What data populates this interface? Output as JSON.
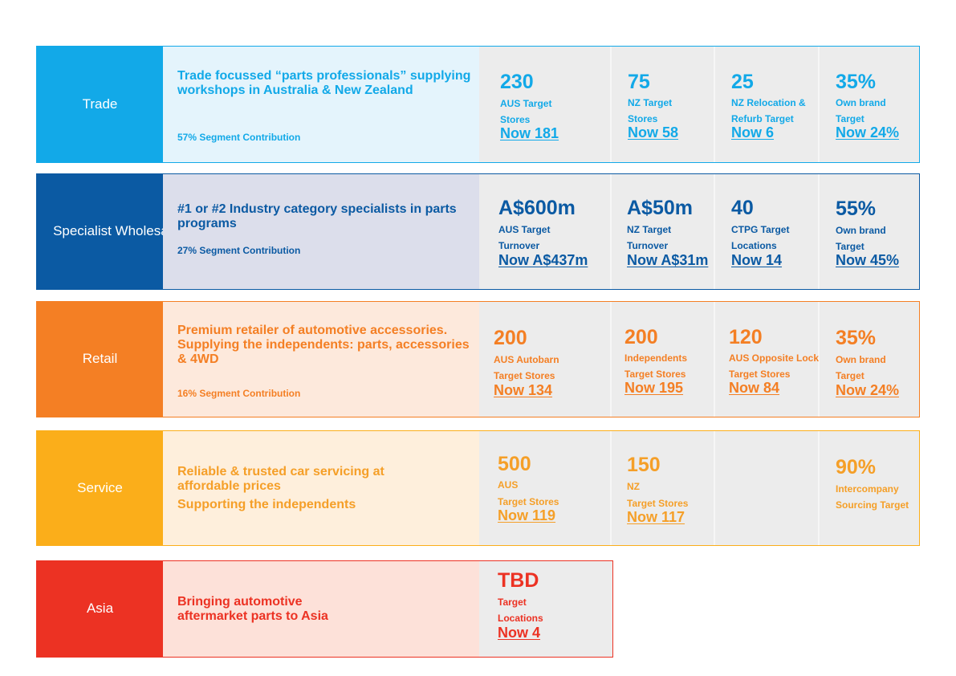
{
  "colors": {
    "trade": "#12a9e8",
    "trade_text": "#12a9e8",
    "trade_light": "#e4f4fc",
    "specialist": "#0b5aa3",
    "specialist_text": "#0b5aa3",
    "specialist_light": "#dcdeeb",
    "retail": "#f47f24",
    "retail_text": "#f47f24",
    "retail_light": "#fde9dc",
    "service": "#fbae1a",
    "service_text": "#f59f28",
    "service_light": "#feefdc",
    "asia": "#ec3223",
    "asia_text": "#ec3223",
    "asia_light": "#fde1d9",
    "metrics_bg": "#ececec"
  },
  "rows": [
    {
      "key": "trade",
      "label": "Trade",
      "description": "Trade focussed “parts professionals” supplying  workshops in Australia & New Zealand",
      "contribution": "57% Segment Contribution",
      "metrics": [
        {
          "value": "230",
          "line1": "AUS Target",
          "line2": "Stores",
          "now": "Now 181"
        },
        {
          "value": "75",
          "line1": "NZ Target",
          "line2": "Stores",
          "now": "Now 58"
        },
        {
          "value": "25",
          "line1": "NZ Relocation &",
          "line2": "Refurb Target",
          "now": "Now 6"
        },
        {
          "value": "35%",
          "line1": "Own brand",
          "line2": "Target",
          "now": "Now 24%"
        }
      ]
    },
    {
      "key": "specialist",
      "label": "Specialist Wholesale",
      "description": "#1 or #2 Industry category specialists in parts programs",
      "contribution": "27% Segment Contribution",
      "metrics": [
        {
          "value": "A$600m",
          "line1": "AUS Target",
          "line2": "Turnover",
          "now": "Now A$437m"
        },
        {
          "value": "A$50m",
          "line1": "NZ Target",
          "line2": "Turnover",
          "now": "Now A$31m"
        },
        {
          "value": "40",
          "line1": "CTPG Target",
          "line2": "Locations",
          "now": "Now 14"
        },
        {
          "value": "55%",
          "line1": "Own brand",
          "line2": "Target",
          "now": "Now 45%"
        }
      ]
    },
    {
      "key": "retail",
      "label": "Retail",
      "description": "Premium retailer of automotive accessories. Supplying the independents: parts, accessories & 4WD",
      "contribution": "16% Segment Contribution",
      "metrics": [
        {
          "value": "200",
          "line1": "AUS Autobarn",
          "line2": "Target Stores",
          "now": "Now 134"
        },
        {
          "value": "200",
          "line1": "Independents",
          "line2": "Target Stores",
          "now": "Now 195"
        },
        {
          "value": "120",
          "line1": "AUS Opposite Lock",
          "line2": "Target Stores",
          "now": "Now 84"
        },
        {
          "value": "35%",
          "line1": "Own brand",
          "line2": "Target",
          "now": "Now 24%"
        }
      ]
    },
    {
      "key": "service",
      "label": "Service",
      "description": "Reliable & trusted car servicing at affordable prices",
      "description2": "Supporting the independents",
      "metrics": [
        {
          "value": "500",
          "line1": "AUS",
          "line2": "Target Stores",
          "now": "Now 119"
        },
        {
          "value": "150",
          "line1": "NZ",
          "line2": "Target Stores",
          "now": "Now 117"
        },
        {
          "value": "90%",
          "line1": "Intercompany",
          "line2": "Sourcing Target"
        }
      ]
    },
    {
      "key": "asia",
      "label": "Asia",
      "description": "Bringing automotive aftermarket parts to Asia",
      "metrics": [
        {
          "value": "TBD",
          "line1": "Target",
          "line2": "Locations",
          "now": "Now 4"
        }
      ]
    }
  ]
}
